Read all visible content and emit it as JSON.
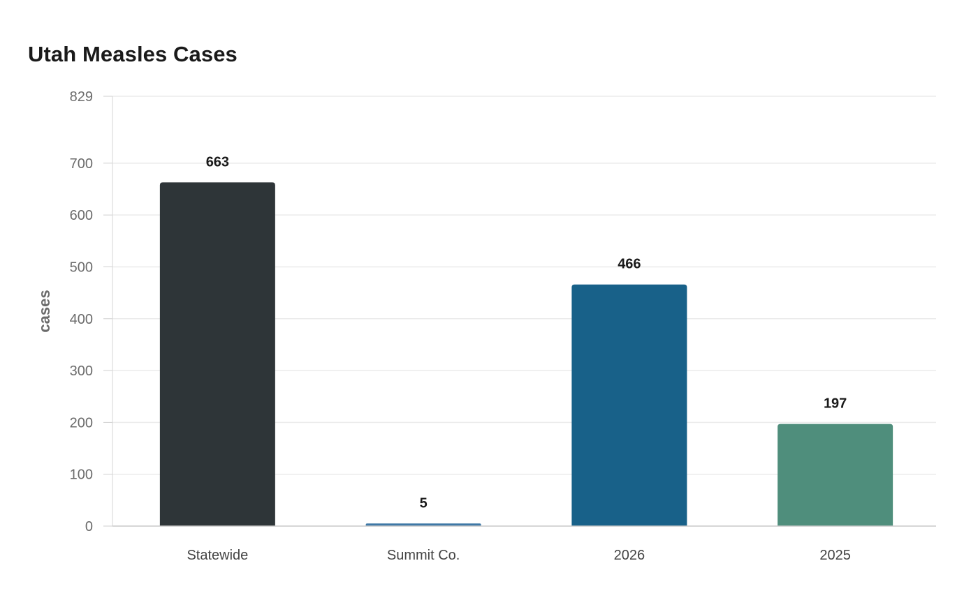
{
  "chart_data": {
    "type": "bar",
    "title": "Utah Measles Cases",
    "xlabel": "",
    "ylabel": "cases",
    "categories": [
      "Statewide",
      "Summit Co.",
      "2026",
      "2025"
    ],
    "values": [
      663,
      5,
      466,
      197
    ],
    "colors": [
      "#2e3538",
      "#3f78a6",
      "#186189",
      "#4f8e7c"
    ],
    "yticks": [
      0,
      100,
      200,
      300,
      400,
      500,
      600,
      700,
      829
    ],
    "ylim": [
      0,
      829
    ],
    "grid": true,
    "legend": "none"
  }
}
